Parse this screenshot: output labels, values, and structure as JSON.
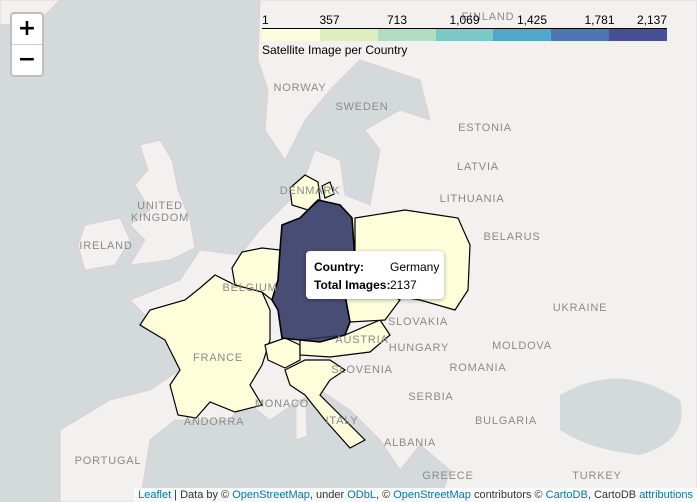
{
  "zoom": {
    "in_label": "+",
    "out_label": "−"
  },
  "legend": {
    "ticks": [
      "1",
      "357",
      "713",
      "1,069",
      "1,425",
      "1,781",
      "2,137"
    ],
    "caption": "Satellite Image per Country",
    "colors": [
      "#ffffd9",
      "#d8f0b4",
      "#a6dbb8",
      "#66c2c0",
      "#339bc3",
      "#3060a8",
      "#2a3485"
    ]
  },
  "popup": {
    "country_label": "Country:",
    "country_value": "Germany",
    "images_label": "Total Images:",
    "images_value": "2137"
  },
  "chart_data": {
    "type": "choropleth",
    "title": "Satellite Image per Country",
    "range": [
      1,
      2137
    ],
    "highlighted": {
      "country": "Germany",
      "value": 2137
    },
    "shaded_countries": [
      "Germany",
      "France",
      "Poland",
      "Denmark",
      "Belgium",
      "Netherlands",
      "Luxembourg",
      "Switzerland",
      "Austria",
      "Czech Republic",
      "Italy"
    ]
  },
  "labels": [
    "NORWAY",
    "SWEDEN",
    "ESTONIA",
    "LATVIA",
    "LITHUANIA",
    "UNITED",
    "KINGDOM",
    "IRELAND",
    "BELARUS",
    "UKRAINE",
    "MOLDOVA",
    "ROMANIA",
    "HUNGARY",
    "SLOVAKIA",
    "SLOVENIA",
    "SERBIA",
    "BULGARIA",
    "ITALY",
    "FRANCE",
    "PORTUGAL",
    "GREECE",
    "TURKEY",
    "ANDORRA",
    "MONACO",
    "AUSTRIA",
    "DENMARK",
    "BELGIUM",
    "FINLAND",
    "ALBANIA"
  ],
  "attribution": {
    "leaflet": "Leaflet",
    "data_by": " | Data by © ",
    "osm1": "OpenStreetMap",
    "under": ", under ",
    "odbl": "ODbL",
    "c2": ", © ",
    "osm2": "OpenStreetMap",
    "contrib": " contributors © ",
    "cartodb": "CartoDB",
    "cartodb2": ", CartoDB ",
    "attributions": "attributions"
  }
}
